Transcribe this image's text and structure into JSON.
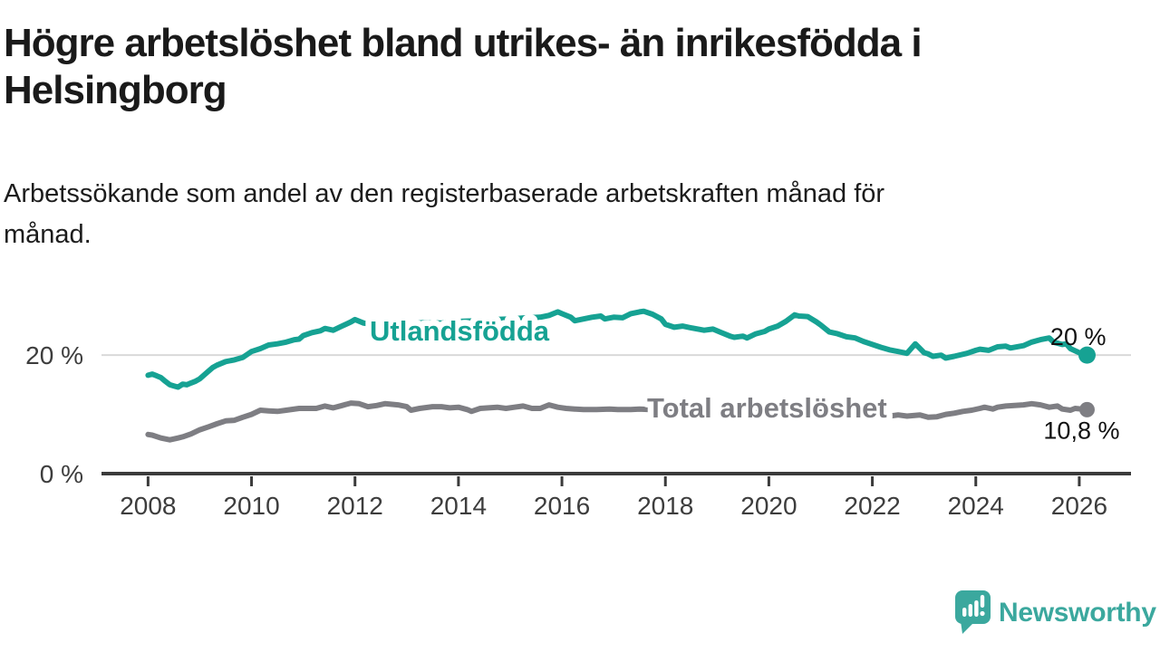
{
  "header": {
    "title_lines": [
      "Högre arbetslöshet bland utrikes- än inrikesfödda i",
      "Helsingborg"
    ],
    "subtitle_lines": [
      "Arbetssökande som andel av den registerbaserade arbetskraften månad för",
      "månad."
    ]
  },
  "branding": {
    "logo_text": "Newsworthy",
    "logo_color": "#3ba89e"
  },
  "chart_data": {
    "type": "line",
    "title": "Högre arbetslöshet bland utrikes- än inrikesfödda i Helsingborg",
    "subtitle": "Arbetssökande som andel av den registerbaserade arbetskraften månad för månad.",
    "xlabel": "",
    "ylabel": "",
    "xlim": [
      2007.1,
      2027.0
    ],
    "ylim": [
      0,
      29.5
    ],
    "x_ticks": [
      2008,
      2010,
      2012,
      2014,
      2016,
      2018,
      2020,
      2022,
      2024,
      2026
    ],
    "y_ticks": [
      {
        "value": 0,
        "label": "0 %"
      },
      {
        "value": 20,
        "label": "20 %"
      }
    ],
    "grid_values": [
      20
    ],
    "grid_on": true,
    "legend_position": "inline-labels-on-lines",
    "colors": {
      "grid": "#d9d9d9",
      "axis": "#3b3b3b",
      "tick_label": "#3d3d3d",
      "end_label": "#111111"
    },
    "series": [
      {
        "name": "Utlandsfödda",
        "color": "#16a293",
        "end_label": "20 %",
        "end_value": 20.0,
        "points": [
          [
            2008.0,
            16.6
          ],
          [
            2008.08,
            16.8
          ],
          [
            2008.17,
            16.5
          ],
          [
            2008.25,
            16.2
          ],
          [
            2008.33,
            15.6
          ],
          [
            2008.42,
            15.0
          ],
          [
            2008.5,
            14.8
          ],
          [
            2008.58,
            14.6
          ],
          [
            2008.67,
            15.1
          ],
          [
            2008.75,
            15.0
          ],
          [
            2008.83,
            15.3
          ],
          [
            2008.92,
            15.6
          ],
          [
            2009.0,
            16.0
          ],
          [
            2009.17,
            17.3
          ],
          [
            2009.25,
            17.9
          ],
          [
            2009.33,
            18.3
          ],
          [
            2009.5,
            18.9
          ],
          [
            2009.67,
            19.2
          ],
          [
            2009.83,
            19.6
          ],
          [
            2010.0,
            20.6
          ],
          [
            2010.17,
            21.1
          ],
          [
            2010.33,
            21.7
          ],
          [
            2010.5,
            21.9
          ],
          [
            2010.67,
            22.2
          ],
          [
            2010.83,
            22.6
          ],
          [
            2010.92,
            22.7
          ],
          [
            2011.0,
            23.3
          ],
          [
            2011.17,
            23.8
          ],
          [
            2011.33,
            24.1
          ],
          [
            2011.42,
            24.5
          ],
          [
            2011.58,
            24.2
          ],
          [
            2011.75,
            24.9
          ],
          [
            2011.92,
            25.6
          ],
          [
            2012.0,
            26.0
          ],
          [
            2012.17,
            25.4
          ],
          [
            2012.33,
            25.2
          ],
          [
            2012.58,
            25.1
          ],
          [
            2012.83,
            25.0
          ],
          [
            2013.08,
            25.3
          ],
          [
            2013.33,
            25.5
          ],
          [
            2013.67,
            25.4
          ],
          [
            2014.0,
            25.7
          ],
          [
            2014.33,
            25.8
          ],
          [
            2014.67,
            26.0
          ],
          [
            2015.0,
            26.1
          ],
          [
            2015.33,
            26.3
          ],
          [
            2015.58,
            26.4
          ],
          [
            2015.75,
            26.7
          ],
          [
            2015.92,
            27.3
          ],
          [
            2016.0,
            27.0
          ],
          [
            2016.17,
            26.4
          ],
          [
            2016.25,
            25.8
          ],
          [
            2016.42,
            26.1
          ],
          [
            2016.58,
            26.4
          ],
          [
            2016.75,
            26.6
          ],
          [
            2016.83,
            26.1
          ],
          [
            2017.0,
            26.4
          ],
          [
            2017.17,
            26.3
          ],
          [
            2017.33,
            27.0
          ],
          [
            2017.5,
            27.3
          ],
          [
            2017.58,
            27.4
          ],
          [
            2017.75,
            26.9
          ],
          [
            2017.92,
            26.1
          ],
          [
            2018.0,
            25.2
          ],
          [
            2018.17,
            24.7
          ],
          [
            2018.33,
            24.9
          ],
          [
            2018.5,
            24.6
          ],
          [
            2018.75,
            24.2
          ],
          [
            2018.92,
            24.4
          ],
          [
            2019.08,
            23.8
          ],
          [
            2019.25,
            23.2
          ],
          [
            2019.33,
            23.0
          ],
          [
            2019.5,
            23.2
          ],
          [
            2019.58,
            22.9
          ],
          [
            2019.75,
            23.6
          ],
          [
            2019.92,
            24.0
          ],
          [
            2020.0,
            24.4
          ],
          [
            2020.17,
            24.9
          ],
          [
            2020.33,
            25.7
          ],
          [
            2020.5,
            26.8
          ],
          [
            2020.58,
            26.6
          ],
          [
            2020.75,
            26.5
          ],
          [
            2020.92,
            25.6
          ],
          [
            2021.0,
            25.1
          ],
          [
            2021.17,
            23.9
          ],
          [
            2021.33,
            23.6
          ],
          [
            2021.5,
            23.1
          ],
          [
            2021.67,
            22.9
          ],
          [
            2021.83,
            22.3
          ],
          [
            2022.0,
            21.8
          ],
          [
            2022.17,
            21.3
          ],
          [
            2022.33,
            20.9
          ],
          [
            2022.5,
            20.6
          ],
          [
            2022.67,
            20.3
          ],
          [
            2022.83,
            21.9
          ],
          [
            2023.0,
            20.4
          ],
          [
            2023.08,
            20.2
          ],
          [
            2023.17,
            19.8
          ],
          [
            2023.33,
            20.0
          ],
          [
            2023.42,
            19.5
          ],
          [
            2023.58,
            19.8
          ],
          [
            2023.83,
            20.3
          ],
          [
            2024.0,
            20.8
          ],
          [
            2024.08,
            21.0
          ],
          [
            2024.25,
            20.8
          ],
          [
            2024.42,
            21.4
          ],
          [
            2024.58,
            21.5
          ],
          [
            2024.67,
            21.2
          ],
          [
            2024.92,
            21.6
          ],
          [
            2025.08,
            22.2
          ],
          [
            2025.25,
            22.6
          ],
          [
            2025.42,
            22.9
          ],
          [
            2025.5,
            22.2
          ],
          [
            2025.67,
            21.8
          ],
          [
            2025.75,
            21.9
          ],
          [
            2025.83,
            21.1
          ],
          [
            2026.0,
            20.4
          ],
          [
            2026.15,
            20.0
          ]
        ]
      },
      {
        "name": "Total arbetslöshet",
        "color": "#7e7e83",
        "end_label": "10,8 %",
        "end_value": 10.8,
        "points": [
          [
            2008.0,
            6.6
          ],
          [
            2008.08,
            6.5
          ],
          [
            2008.25,
            6.0
          ],
          [
            2008.42,
            5.7
          ],
          [
            2008.58,
            6.0
          ],
          [
            2008.67,
            6.2
          ],
          [
            2008.83,
            6.7
          ],
          [
            2009.0,
            7.4
          ],
          [
            2009.17,
            7.9
          ],
          [
            2009.33,
            8.4
          ],
          [
            2009.5,
            8.9
          ],
          [
            2009.67,
            9.0
          ],
          [
            2009.83,
            9.5
          ],
          [
            2010.0,
            10.0
          ],
          [
            2010.17,
            10.7
          ],
          [
            2010.33,
            10.6
          ],
          [
            2010.5,
            10.5
          ],
          [
            2010.67,
            10.7
          ],
          [
            2010.92,
            11.0
          ],
          [
            2011.08,
            11.0
          ],
          [
            2011.25,
            11.0
          ],
          [
            2011.42,
            11.4
          ],
          [
            2011.58,
            11.1
          ],
          [
            2011.75,
            11.5
          ],
          [
            2011.92,
            11.9
          ],
          [
            2012.08,
            11.8
          ],
          [
            2012.25,
            11.3
          ],
          [
            2012.42,
            11.5
          ],
          [
            2012.58,
            11.8
          ],
          [
            2012.83,
            11.6
          ],
          [
            2013.0,
            11.3
          ],
          [
            2013.08,
            10.7
          ],
          [
            2013.25,
            11.0
          ],
          [
            2013.5,
            11.3
          ],
          [
            2013.67,
            11.3
          ],
          [
            2013.83,
            11.1
          ],
          [
            2014.0,
            11.2
          ],
          [
            2014.17,
            10.8
          ],
          [
            2014.25,
            10.5
          ],
          [
            2014.42,
            11.0
          ],
          [
            2014.58,
            11.1
          ],
          [
            2014.75,
            11.2
          ],
          [
            2014.92,
            11.0
          ],
          [
            2015.08,
            11.2
          ],
          [
            2015.25,
            11.4
          ],
          [
            2015.42,
            11.0
          ],
          [
            2015.58,
            11.0
          ],
          [
            2015.75,
            11.6
          ],
          [
            2015.92,
            11.2
          ],
          [
            2016.08,
            11.0
          ],
          [
            2016.25,
            10.9
          ],
          [
            2016.42,
            10.8
          ],
          [
            2016.67,
            10.8
          ],
          [
            2016.92,
            10.9
          ],
          [
            2017.08,
            10.8
          ],
          [
            2017.33,
            10.8
          ],
          [
            2017.5,
            10.9
          ],
          [
            2018.0,
            10.7
          ],
          [
            2018.5,
            10.5
          ],
          [
            2019.0,
            10.4
          ],
          [
            2019.5,
            10.3
          ],
          [
            2020.0,
            10.6
          ],
          [
            2020.5,
            11.0
          ],
          [
            2021.0,
            10.8
          ],
          [
            2021.5,
            10.4
          ],
          [
            2022.0,
            10.0
          ],
          [
            2022.33,
            9.7
          ],
          [
            2022.5,
            9.9
          ],
          [
            2022.67,
            9.7
          ],
          [
            2022.92,
            9.9
          ],
          [
            2023.08,
            9.5
          ],
          [
            2023.25,
            9.6
          ],
          [
            2023.42,
            10.0
          ],
          [
            2023.58,
            10.2
          ],
          [
            2023.75,
            10.5
          ],
          [
            2023.92,
            10.7
          ],
          [
            2024.08,
            11.0
          ],
          [
            2024.17,
            11.2
          ],
          [
            2024.33,
            10.9
          ],
          [
            2024.42,
            11.2
          ],
          [
            2024.58,
            11.4
          ],
          [
            2024.75,
            11.5
          ],
          [
            2024.92,
            11.6
          ],
          [
            2025.08,
            11.8
          ],
          [
            2025.25,
            11.6
          ],
          [
            2025.42,
            11.2
          ],
          [
            2025.58,
            11.4
          ],
          [
            2025.67,
            10.9
          ],
          [
            2025.83,
            10.7
          ],
          [
            2025.92,
            11.0
          ],
          [
            2026.15,
            10.8
          ]
        ]
      }
    ]
  }
}
